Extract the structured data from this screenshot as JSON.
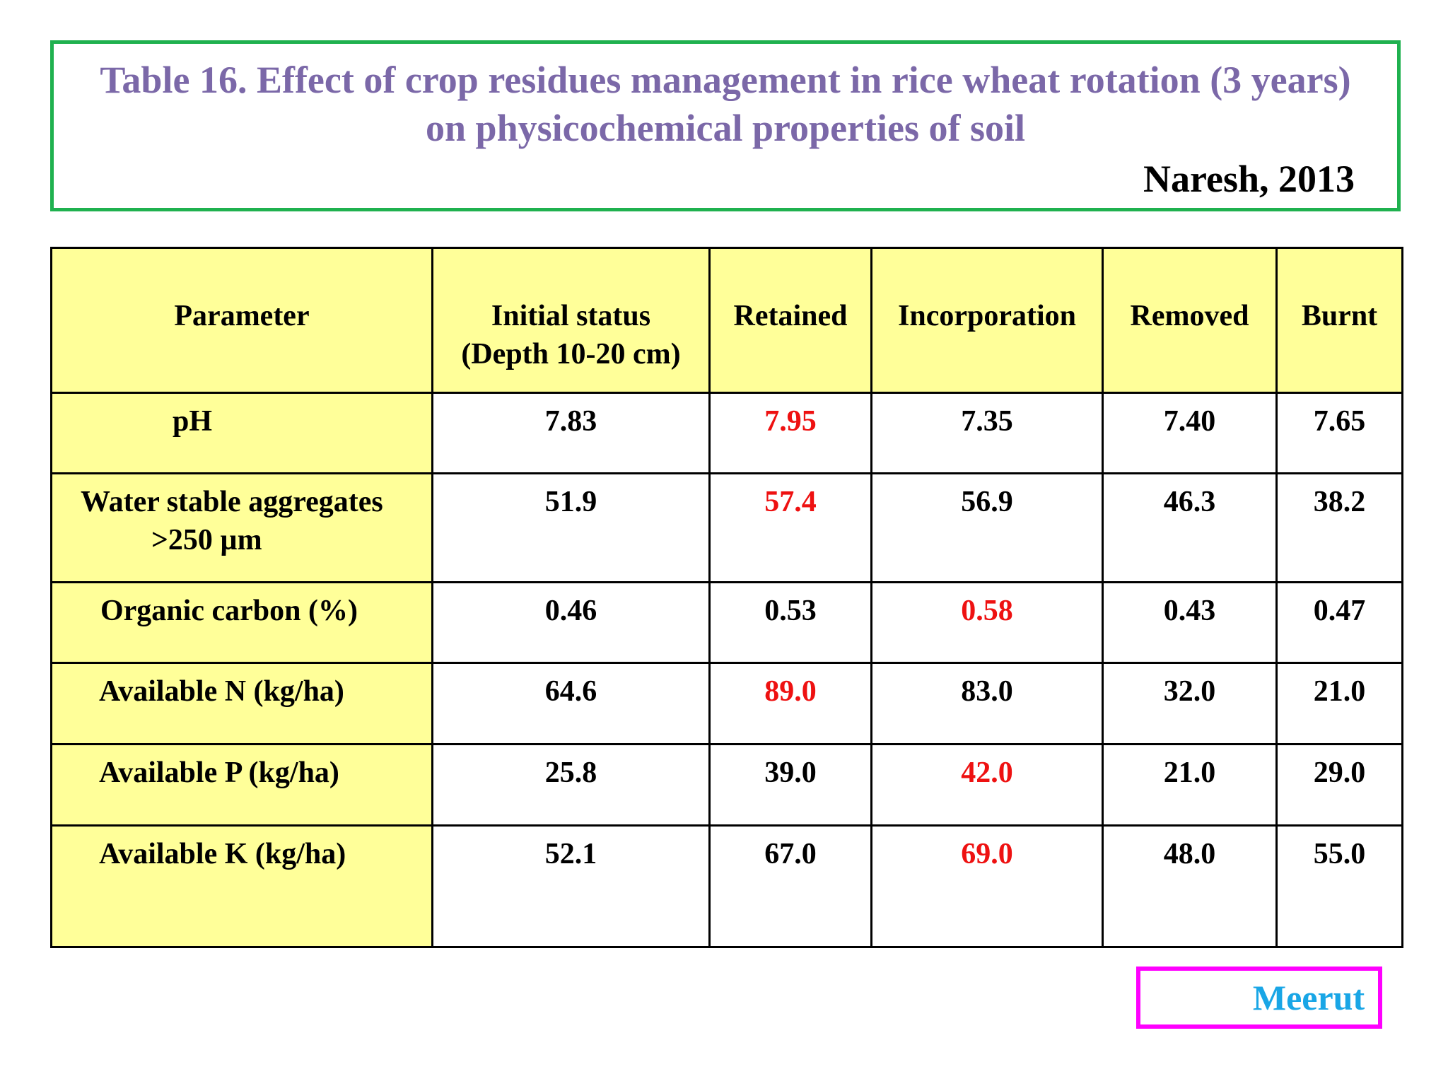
{
  "title": {
    "line1": "Table 16. Effect of crop residues management in rice wheat rotation (3 years)",
    "line2": "on physicochemical properties of soil",
    "citation": "Naresh, 2013"
  },
  "table": {
    "headers": {
      "parameter": "Parameter",
      "initial_line1": "Initial status",
      "initial_line2": "(Depth 10-20 cm)",
      "retained": "Retained",
      "incorporation": "Incorporation",
      "removed": "Removed",
      "burnt": "Burnt"
    },
    "rows": [
      {
        "parameter": "pH",
        "initial": "7.83",
        "retained": "7.95",
        "incorporation": "7.35",
        "removed": "7.40",
        "burnt": "7.65",
        "highlight": "retained"
      },
      {
        "parameter": "Water stable aggregates",
        "parameter_line2": ">250 µm",
        "initial": "51.9",
        "retained": "57.4",
        "incorporation": "56.9",
        "removed": "46.3",
        "burnt": "38.2",
        "highlight": "retained"
      },
      {
        "parameter": "Organic carbon (%)",
        "initial": "0.46",
        "retained": "0.53",
        "incorporation": "0.58",
        "removed": "0.43",
        "burnt": "0.47",
        "highlight": "incorporation"
      },
      {
        "parameter": "Available N (kg/ha)",
        "initial": "64.6",
        "retained": "89.0",
        "incorporation": "83.0",
        "removed": "32.0",
        "burnt": "21.0",
        "highlight": "retained"
      },
      {
        "parameter": "Available P (kg/ha)",
        "initial": "25.8",
        "retained": "39.0",
        "incorporation": "42.0",
        "removed": "21.0",
        "burnt": "29.0",
        "highlight": "incorporation"
      },
      {
        "parameter": "Available K (kg/ha)",
        "initial": "52.1",
        "retained": "67.0",
        "incorporation": "69.0",
        "removed": "48.0",
        "burnt": "55.0",
        "highlight": "incorporation"
      }
    ]
  },
  "location_label": "Meerut",
  "colors": {
    "title": "#7b68a8",
    "title_border": "#1fb14f",
    "header_fill": "#ffff99",
    "highlight_red": "#ee1111",
    "location_border": "#ff00ff",
    "location_text": "#19a6e6"
  }
}
